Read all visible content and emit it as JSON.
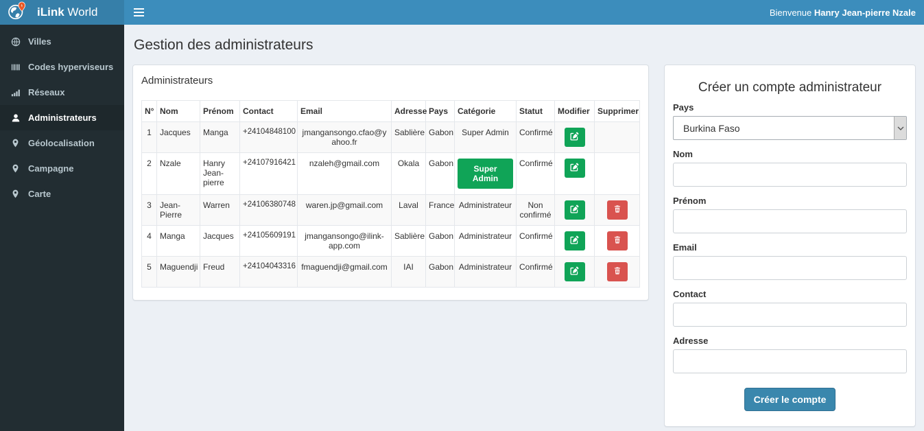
{
  "brand": {
    "bold": "iLink",
    "rest": " World"
  },
  "topbar": {
    "welcome_prefix": "Bienvenue ",
    "welcome_name": "Hanry Jean-pierre Nzale"
  },
  "sidebar": {
    "items": [
      {
        "id": "villes",
        "label": "Villes",
        "icon": "globe-icon",
        "active": false
      },
      {
        "id": "codes-hyperviseurs",
        "label": "Codes hyperviseurs",
        "icon": "barcode-icon",
        "active": false
      },
      {
        "id": "reseaux",
        "label": "Réseaux",
        "icon": "signal-bars-icon",
        "active": false
      },
      {
        "id": "administrateurs",
        "label": "Administrateurs",
        "icon": "user-icon",
        "active": true
      },
      {
        "id": "geolocalisation",
        "label": "Géolocalisation",
        "icon": "map-marker-icon",
        "active": false
      },
      {
        "id": "campagne",
        "label": "Campagne",
        "icon": "map-marker-icon",
        "active": false
      },
      {
        "id": "carte",
        "label": "Carte",
        "icon": "map-marker-icon",
        "active": false
      }
    ]
  },
  "page": {
    "title": "Gestion des administrateurs"
  },
  "admin_table": {
    "panel_title": "Administrateurs",
    "headers": [
      "N°",
      "Nom",
      "Prénom",
      "Contact",
      "Email",
      "Adresse",
      "Pays",
      "Catégorie",
      "Statut",
      "Modifier",
      "Supprimer"
    ],
    "rows": [
      {
        "num": "1",
        "nom": "Jacques",
        "prenom": "Manga",
        "contact": "+24104848100",
        "email": "jmangansongo.cfao@yahoo.fr",
        "adresse": "Sablière",
        "pays": "Gabon",
        "categorie": "Super Admin",
        "categorie_badge": false,
        "statut": "Confirmé",
        "can_delete": false
      },
      {
        "num": "2",
        "nom": "Nzale",
        "prenom": "Hanry Jean-pierre",
        "contact": "+24107916421",
        "email": "nzaleh@gmail.com",
        "adresse": "Okala",
        "pays": "Gabon",
        "categorie": "Super Admin",
        "categorie_badge": true,
        "statut": "Confirmé",
        "can_delete": false
      },
      {
        "num": "3",
        "nom": "Jean-Pierre",
        "prenom": "Warren",
        "contact": "+24106380748",
        "email": "waren.jp@gmail.com",
        "adresse": "Laval",
        "pays": "France",
        "categorie": "Administrateur",
        "categorie_badge": false,
        "statut": "Non confirmé",
        "can_delete": true
      },
      {
        "num": "4",
        "nom": "Manga",
        "prenom": "Jacques",
        "contact": "+24105609191",
        "email": "jmangansongo@ilink-app.com",
        "adresse": "Sablière",
        "pays": "Gabon",
        "categorie": "Administrateur",
        "categorie_badge": false,
        "statut": "Confirmé",
        "can_delete": true
      },
      {
        "num": "5",
        "nom": "Maguendji",
        "prenom": "Freud",
        "contact": "+24104043316",
        "email": "fmaguendji@gmail.com",
        "adresse": "IAI",
        "pays": "Gabon",
        "categorie": "Administrateur",
        "categorie_badge": false,
        "statut": "Confirmé",
        "can_delete": true
      }
    ]
  },
  "create_form": {
    "title": "Créer un compte administrateur",
    "pays": {
      "label": "Pays",
      "value": "Burkina Faso"
    },
    "nom": {
      "label": "Nom",
      "value": ""
    },
    "prenom": {
      "label": "Prénom",
      "value": ""
    },
    "email": {
      "label": "Email",
      "value": ""
    },
    "contact": {
      "label": "Contact",
      "value": ""
    },
    "adresse": {
      "label": "Adresse",
      "value": ""
    },
    "submit_label": "Créer le compte"
  },
  "colors": {
    "navbar": "#3c8dbc",
    "brand_bg": "#367fa9",
    "sidebar_bg": "#222d32",
    "sidebar_active_bg": "#1e282c",
    "sidebar_text": "#b8c7ce",
    "success_green": "#10a457",
    "danger_red": "#d9534f",
    "primary_button": "#3a87ad",
    "page_bg": "#ecf0f5"
  }
}
